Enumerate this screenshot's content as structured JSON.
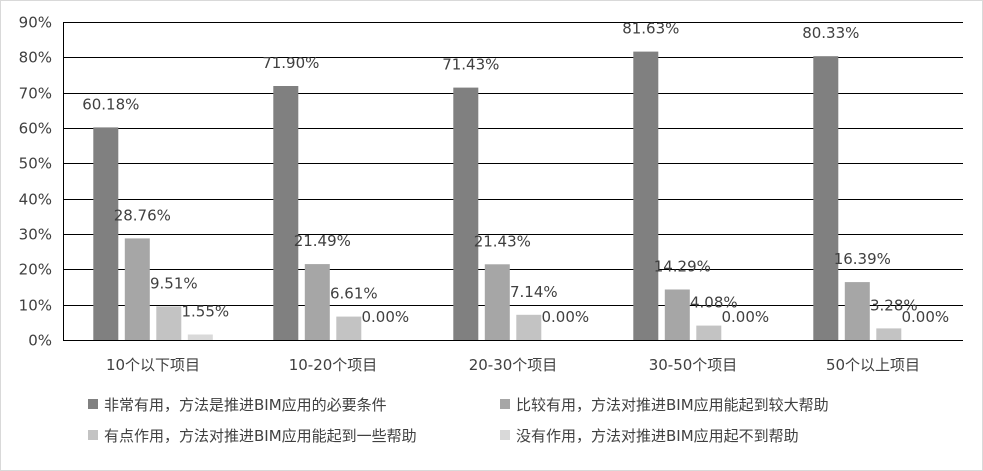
{
  "chart_data": {
    "type": "bar",
    "categories": [
      "10个以下项目",
      "10-20个项目",
      "20-30个项目",
      "30-50个项目",
      "50个以上项目"
    ],
    "series": [
      {
        "name": "非常有用，方法是推进BIM应用的必要条件",
        "values": [
          60.18,
          71.9,
          71.43,
          81.63,
          80.33
        ],
        "labels": [
          "60.18%",
          "71.90%",
          "71.43%",
          "81.63%",
          "80.33%"
        ]
      },
      {
        "name": "比较有用，方法对推进BIM应用能起到较大帮助",
        "values": [
          28.76,
          21.49,
          21.43,
          14.29,
          16.39
        ],
        "labels": [
          "28.76%",
          "21.49%",
          "21.43%",
          "14.29%",
          "16.39%"
        ]
      },
      {
        "name": "有点作用，方法对推进BIM应用能起到一些帮助",
        "values": [
          9.51,
          6.61,
          7.14,
          4.08,
          3.28
        ],
        "labels": [
          "9.51%",
          "6.61%",
          "7.14%",
          "4.08%",
          "3.28%"
        ]
      },
      {
        "name": "没有作用，方法对推进BIM应用起不到帮助",
        "values": [
          1.55,
          0.0,
          0.0,
          0.0,
          0.0
        ],
        "labels": [
          "1.55%",
          "0.00%",
          "0.00%",
          "0.00%",
          "0.00%"
        ]
      }
    ],
    "colors": [
      "#808080",
      "#a6a6a6",
      "#c3c3c3",
      "#d9d9d9"
    ],
    "ylim": [
      0,
      90
    ],
    "yticks": [
      0,
      10,
      20,
      30,
      40,
      50,
      60,
      70,
      80,
      90
    ],
    "ytick_labels": [
      "0%",
      "10%",
      "20%",
      "30%",
      "40%",
      "50%",
      "60%",
      "70%",
      "80%",
      "90%"
    ],
    "grid": true,
    "legend_position": "bottom"
  }
}
